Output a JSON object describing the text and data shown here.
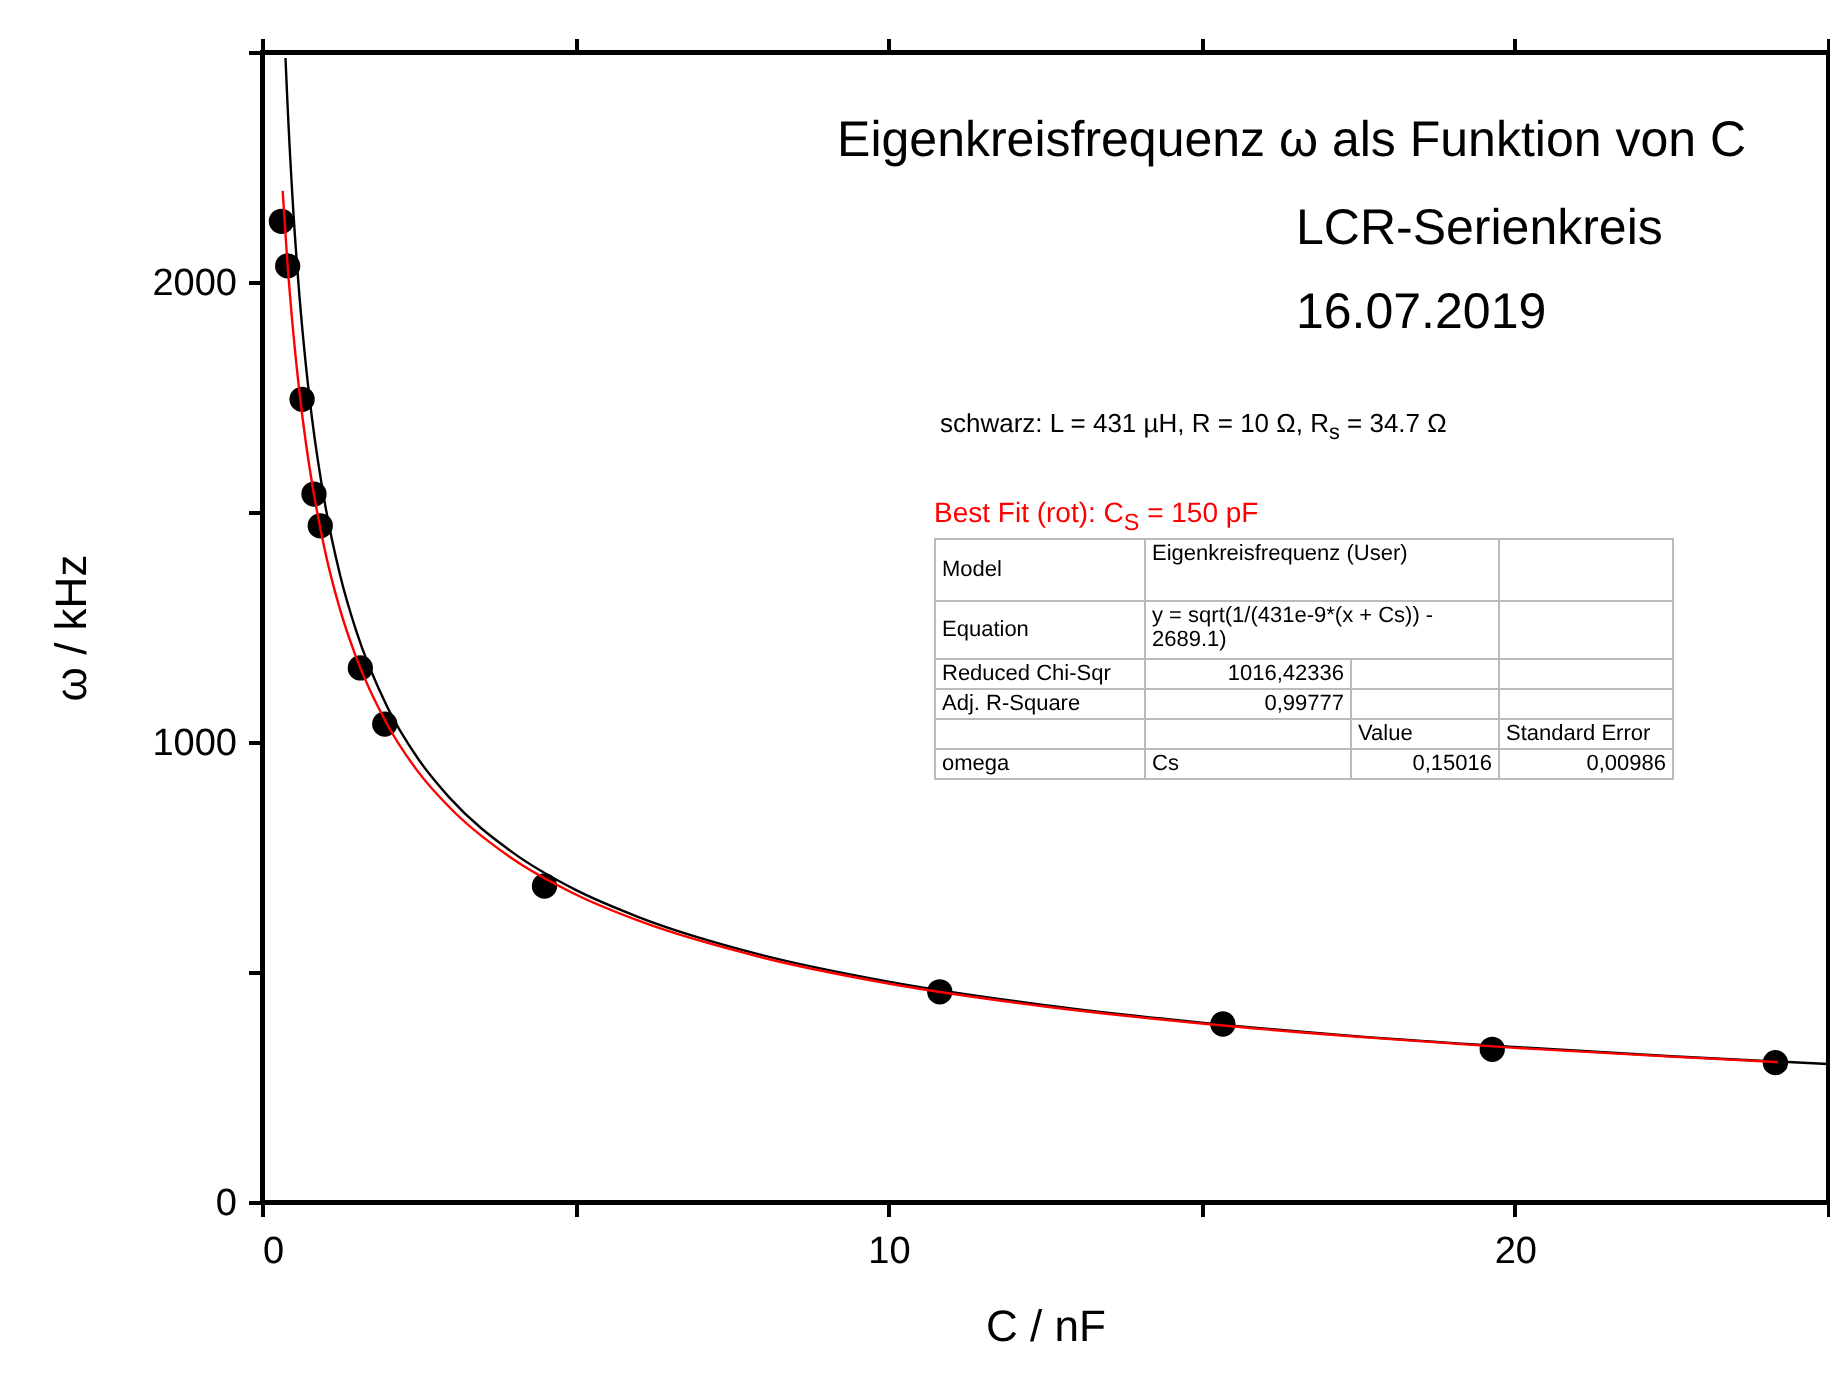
{
  "chart_data": {
    "type": "scatter",
    "title": "Eigenkreisfrequenz ω als Funktion von C",
    "subtitle": "LCR-Serienkreis",
    "xlabel": "C  / nF",
    "ylabel": "ω  / kHz",
    "annotations": [
      "16.07.2019",
      "schwarz: L = 431 µH, R = 10 Ω, R$_{s}$ = 34.7 Ω",
      "Best Fit (rot): C$_{S}$ = 150 pF",
      "Model",
      "Eigenkreisfrequenz (User)",
      "Equation",
      "y = sqrt(1/(431e-9*(x + Cs)) - 2689.1)",
      "Reduced Chi-Sqr",
      "1016,42336",
      "Adj. R-Square",
      "0,99777",
      "Value",
      "Standard Error",
      "omega",
      "Cs",
      "0,15016",
      "0,00986"
    ],
    "xlim": [
      0,
      25
    ],
    "ylim": [
      0,
      2500
    ],
    "xticks": [
      0,
      {
        "value": 5,
        "label": null
      },
      10,
      {
        "value": 15,
        "label": null
      },
      20,
      {
        "value": 25,
        "label": null
      }
    ],
    "yticks": [
      0,
      {
        "value": 500,
        "label": null
      },
      1000,
      {
        "value": 1500,
        "label": null
      },
      2000,
      {
        "value": 2500,
        "label": null
      }
    ],
    "grid": false,
    "series": [
      {
        "marker": "circle",
        "color": "#000000",
        "x": [
          0.31,
          0.41,
          0.64,
          0.83,
          0.93,
          1.57,
          1.96,
          4.51,
          10.82,
          15.34,
          19.64,
          24.16
        ],
        "values": [
          2132,
          2035,
          1745,
          1539,
          1470,
          1161,
          1039,
          687,
          457,
          387,
          332,
          303
        ]
      },
      {
        "type": "line",
        "color": "#000000",
        "x": [
          0.375,
          0.4,
          0.5,
          0.6,
          0.7,
          0.8,
          1,
          1.25,
          1.5,
          2,
          2.5,
          3,
          4,
          5,
          6,
          8,
          10,
          12.5,
          15,
          17.5,
          20,
          22.5,
          25
        ],
        "values": [
          2487,
          2408,
          2154,
          1966,
          1820,
          1702,
          1522,
          1361,
          1243,
          1076,
          962,
          878,
          760,
          679,
          620,
          536,
          479,
          428,
          390,
          360,
          337,
          317,
          300
        ]
      },
      {
        "type": "line",
        "color": "#ff0000",
        "x": [
          0.33,
          0.4,
          0.5,
          0.6,
          0.7,
          0.8,
          1,
          1.25,
          1.5,
          2,
          2.5,
          3,
          4,
          5,
          6,
          8,
          10,
          12.5,
          15,
          17.5,
          20,
          22.5,
          24.2
        ],
        "values": [
          2198,
          2053,
          1889,
          1758,
          1651,
          1562,
          1419,
          1286,
          1185,
          1038,
          934,
          857,
          746,
          669,
          612,
          531,
          475,
          425,
          388,
          359,
          335,
          316,
          304
        ]
      }
    ]
  }
}
